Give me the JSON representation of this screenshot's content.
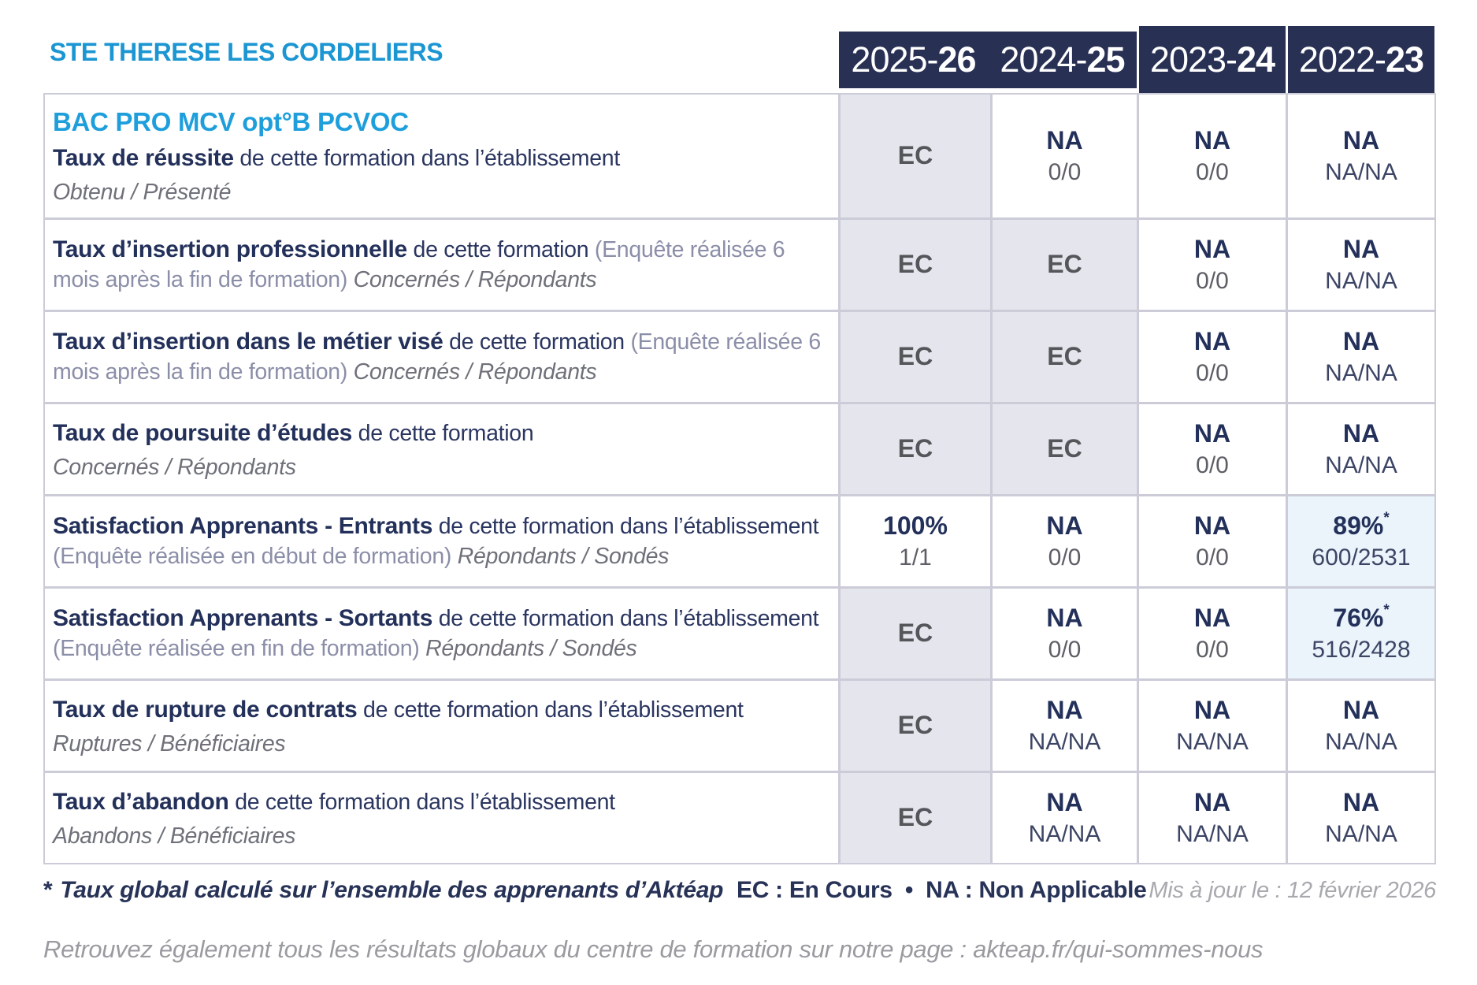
{
  "school": "STE THERESE LES CORDELIERS",
  "program": "BAC PRO MCV opt°B PCVOC",
  "years": [
    {
      "prefix": "2025-",
      "bold": "26"
    },
    {
      "prefix": "2024-",
      "bold": "25"
    },
    {
      "prefix": "2023-",
      "bold": "24"
    },
    {
      "prefix": "2022-",
      "bold": "23"
    }
  ],
  "rows": [
    {
      "bold": "Taux de réussite",
      "text": " de cette formation dans l’établissement",
      "paren": "",
      "inline_italic": "",
      "block_italic": "Obtenu / Présenté",
      "cells": [
        {
          "main": "EC",
          "sub": "",
          "main_style": "ec",
          "sub_style": "gray",
          "bg": "lavender",
          "sup": ""
        },
        {
          "main": "NA",
          "sub": "0/0",
          "main_style": "navy",
          "sub_style": "gray",
          "bg": "white",
          "sup": ""
        },
        {
          "main": "NA",
          "sub": "0/0",
          "main_style": "navy",
          "sub_style": "gray",
          "bg": "white",
          "sup": ""
        },
        {
          "main": "NA",
          "sub": "NA/NA",
          "main_style": "navy",
          "sub_style": "navy",
          "bg": "white",
          "sup": ""
        }
      ]
    },
    {
      "bold": "Taux d’insertion professionnelle",
      "text": " de cette formation ",
      "paren": "(Enquête réalisée 6 mois après la fin de formation)",
      "inline_italic": " Concernés / Répondants",
      "block_italic": "",
      "cells": [
        {
          "main": "EC",
          "sub": "",
          "main_style": "ec",
          "sub_style": "gray",
          "bg": "lavender",
          "sup": ""
        },
        {
          "main": "EC",
          "sub": "",
          "main_style": "ec",
          "sub_style": "gray",
          "bg": "lavender",
          "sup": ""
        },
        {
          "main": "NA",
          "sub": "0/0",
          "main_style": "navy",
          "sub_style": "gray",
          "bg": "white",
          "sup": ""
        },
        {
          "main": "NA",
          "sub": "NA/NA",
          "main_style": "navy",
          "sub_style": "navy",
          "bg": "white",
          "sup": ""
        }
      ]
    },
    {
      "bold": "Taux d’insertion dans le métier visé",
      "text": " de cette formation ",
      "paren": "(Enquête réalisée 6 mois après la fin de formation)",
      "inline_italic": " Concernés / Répondants",
      "block_italic": "",
      "cells": [
        {
          "main": "EC",
          "sub": "",
          "main_style": "ec",
          "sub_style": "gray",
          "bg": "lavender",
          "sup": ""
        },
        {
          "main": "EC",
          "sub": "",
          "main_style": "ec",
          "sub_style": "gray",
          "bg": "lavender",
          "sup": ""
        },
        {
          "main": "NA",
          "sub": "0/0",
          "main_style": "navy",
          "sub_style": "gray",
          "bg": "white",
          "sup": ""
        },
        {
          "main": "NA",
          "sub": "NA/NA",
          "main_style": "navy",
          "sub_style": "navy",
          "bg": "white",
          "sup": ""
        }
      ]
    },
    {
      "bold": "Taux de poursuite d’études",
      "text": " de cette formation",
      "paren": "",
      "inline_italic": "",
      "block_italic": "Concernés / Répondants",
      "cells": [
        {
          "main": "EC",
          "sub": "",
          "main_style": "ec",
          "sub_style": "gray",
          "bg": "lavender",
          "sup": ""
        },
        {
          "main": "EC",
          "sub": "",
          "main_style": "ec",
          "sub_style": "gray",
          "bg": "lavender",
          "sup": ""
        },
        {
          "main": "NA",
          "sub": "0/0",
          "main_style": "navy",
          "sub_style": "gray",
          "bg": "white",
          "sup": ""
        },
        {
          "main": "NA",
          "sub": "NA/NA",
          "main_style": "navy",
          "sub_style": "navy",
          "bg": "white",
          "sup": ""
        }
      ]
    },
    {
      "bold": "Satisfaction Apprenants - Entrants",
      "text": " de cette formation dans l’établissement ",
      "paren": "(Enquête réalisée en début de formation)",
      "inline_italic": " Répondants / Sondés",
      "block_italic": "",
      "cells": [
        {
          "main": "100%",
          "sub": "1/1",
          "main_style": "navy",
          "sub_style": "gray",
          "bg": "white",
          "sup": ""
        },
        {
          "main": "NA",
          "sub": "0/0",
          "main_style": "navy",
          "sub_style": "gray",
          "bg": "white",
          "sup": ""
        },
        {
          "main": "NA",
          "sub": "0/0",
          "main_style": "navy",
          "sub_style": "gray",
          "bg": "white",
          "sup": ""
        },
        {
          "main": "89%",
          "sub": "600/2531",
          "main_style": "navy",
          "sub_style": "navy",
          "bg": "blue",
          "sup": "*"
        }
      ]
    },
    {
      "bold": "Satisfaction Apprenants - Sortants",
      "text": " de cette formation dans l’établissement ",
      "paren": "(Enquête réalisée en fin de formation)",
      "inline_italic": " Répondants / Sondés",
      "block_italic": "",
      "cells": [
        {
          "main": "EC",
          "sub": "",
          "main_style": "ec",
          "sub_style": "gray",
          "bg": "lavender",
          "sup": ""
        },
        {
          "main": "NA",
          "sub": "0/0",
          "main_style": "navy",
          "sub_style": "gray",
          "bg": "white",
          "sup": ""
        },
        {
          "main": "NA",
          "sub": "0/0",
          "main_style": "navy",
          "sub_style": "gray",
          "bg": "white",
          "sup": ""
        },
        {
          "main": "76%",
          "sub": "516/2428",
          "main_style": "navy",
          "sub_style": "navy",
          "bg": "blue",
          "sup": "*"
        }
      ]
    },
    {
      "bold": "Taux de rupture de contrats",
      "text": " de cette formation dans l’établissement",
      "paren": "",
      "inline_italic": "",
      "block_italic": "Ruptures / Bénéficiaires",
      "cells": [
        {
          "main": "EC",
          "sub": "",
          "main_style": "ec",
          "sub_style": "gray",
          "bg": "lavender",
          "sup": ""
        },
        {
          "main": "NA",
          "sub": "NA/NA",
          "main_style": "navy",
          "sub_style": "navy",
          "bg": "white",
          "sup": ""
        },
        {
          "main": "NA",
          "sub": "NA/NA",
          "main_style": "navy",
          "sub_style": "navy",
          "bg": "white",
          "sup": ""
        },
        {
          "main": "NA",
          "sub": "NA/NA",
          "main_style": "navy",
          "sub_style": "navy",
          "bg": "white",
          "sup": ""
        }
      ]
    },
    {
      "bold": "Taux d’abandon",
      "text": " de cette formation dans l’établissement",
      "paren": "",
      "inline_italic": "",
      "block_italic": "Abandons / Bénéficiaires",
      "cells": [
        {
          "main": "EC",
          "sub": "",
          "main_style": "ec",
          "sub_style": "gray",
          "bg": "lavender",
          "sup": ""
        },
        {
          "main": "NA",
          "sub": "NA/NA",
          "main_style": "navy",
          "sub_style": "navy",
          "bg": "white",
          "sup": ""
        },
        {
          "main": "NA",
          "sub": "NA/NA",
          "main_style": "navy",
          "sub_style": "navy",
          "bg": "white",
          "sup": ""
        },
        {
          "main": "NA",
          "sub": "NA/NA",
          "main_style": "navy",
          "sub_style": "navy",
          "bg": "white",
          "sup": ""
        }
      ]
    }
  ],
  "footnote": {
    "star": "*",
    "text": "Taux global calculé sur l’ensemble des apprenants d’Aktéap",
    "legend": "EC : En Cours  •  NA : Non Applicable",
    "updated": "Mis à jour le : 12 février 2026"
  },
  "bottom_note": "Retrouvez également tous les résultats globaux du centre de formation sur notre page : akteap.fr/qui-sommes-nous",
  "colors": {
    "accent_blue": "#1b96d2",
    "program_blue": "#1e9fdc",
    "header_navy": "#283054",
    "text_navy": "#23305a",
    "lavender_cell": "#e5e5ee",
    "pale_blue_cell": "#eaf4fa",
    "ec_gray": "#55565a",
    "border_gray": "#cbccd8"
  }
}
